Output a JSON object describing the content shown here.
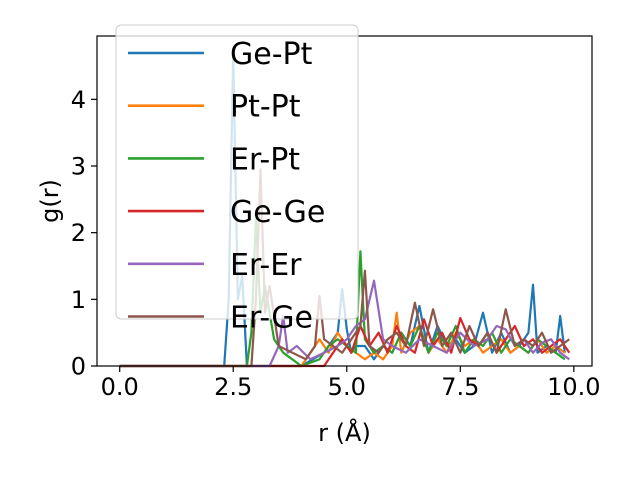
{
  "chart_data": {
    "type": "line",
    "title": "",
    "xlabel": "r (Å)",
    "ylabel": "g(r)",
    "xlim": [
      -0.5,
      10.4
    ],
    "ylim": [
      0,
      4.95
    ],
    "xticks": [
      0.0,
      2.5,
      5.0,
      7.5,
      10.0
    ],
    "xtick_labels": [
      "0.0",
      "2.5",
      "5.0",
      "7.5",
      "10.0"
    ],
    "yticks": [
      0,
      1,
      2,
      3,
      4
    ],
    "ytick_labels": [
      "0",
      "1",
      "2",
      "3",
      "4"
    ],
    "grid": false,
    "legend_position": "upper-left",
    "series": [
      {
        "name": "Ge-Pt",
        "color": "#1f77b4",
        "x": [
          0.0,
          2.3,
          2.4,
          2.5,
          2.6,
          2.7,
          2.8,
          3.0,
          3.5,
          4.0,
          4.5,
          4.8,
          4.9,
          5.0,
          5.1,
          5.2,
          5.4,
          5.6,
          5.8,
          6.0,
          6.2,
          6.4,
          6.6,
          6.8,
          7.0,
          7.2,
          7.4,
          7.6,
          7.8,
          8.0,
          8.2,
          8.4,
          8.6,
          8.8,
          9.0,
          9.1,
          9.2,
          9.4,
          9.6,
          9.7,
          9.8
        ],
        "y": [
          0,
          0,
          1.0,
          4.7,
          1.0,
          1.35,
          0,
          0,
          0,
          0,
          0.2,
          0.5,
          1.15,
          0.55,
          0.2,
          0.3,
          0.3,
          0.1,
          0.3,
          0.2,
          0.5,
          0.3,
          0.9,
          0.2,
          0.6,
          0.3,
          0.4,
          0.2,
          0.3,
          0.8,
          0.2,
          0.5,
          0.2,
          0.3,
          0.5,
          1.22,
          0.2,
          0.3,
          0.2,
          0.75,
          0.2
        ]
      },
      {
        "name": "Pt-Pt",
        "color": "#ff7f0e",
        "x": [
          0.0,
          4.0,
          4.2,
          4.4,
          4.6,
          4.8,
          5.0,
          5.2,
          5.4,
          5.6,
          5.8,
          6.0,
          6.1,
          6.2,
          6.4,
          6.6,
          6.8,
          7.0,
          7.2,
          7.4,
          7.6,
          7.8,
          8.0,
          8.2,
          8.4,
          8.6,
          8.8,
          9.0,
          9.2,
          9.4,
          9.6,
          9.8
        ],
        "y": [
          0,
          0,
          0.2,
          0.4,
          0.2,
          0.5,
          0.3,
          0.2,
          0.1,
          0.2,
          0.1,
          0.3,
          0.8,
          0.2,
          0.5,
          0.6,
          0.2,
          0.4,
          0.2,
          0.5,
          0.3,
          0.4,
          0.2,
          0.3,
          0.4,
          0.2,
          0.3,
          0.2,
          0.4,
          0.2,
          0.3,
          0.2
        ]
      },
      {
        "name": "Er-Pt",
        "color": "#2ca02c",
        "x": [
          0.0,
          2.8,
          2.9,
          3.0,
          3.1,
          3.2,
          3.4,
          3.6,
          4.0,
          4.4,
          4.6,
          4.8,
          5.0,
          5.2,
          5.3,
          5.4,
          5.6,
          5.8,
          6.0,
          6.2,
          6.4,
          6.6,
          6.8,
          7.0,
          7.2,
          7.4,
          7.6,
          7.8,
          8.0,
          8.2,
          8.4,
          8.6,
          8.8,
          9.0,
          9.2,
          9.4,
          9.6,
          9.8
        ],
        "y": [
          0,
          0,
          0.5,
          2.2,
          0.8,
          1.2,
          0.4,
          0.2,
          0,
          0.1,
          0.3,
          0.4,
          0.3,
          0.2,
          1.72,
          0.4,
          0.2,
          0.3,
          0.2,
          0.5,
          0.3,
          0.6,
          0.2,
          0.5,
          0.3,
          0.6,
          0.2,
          0.4,
          0.3,
          0.5,
          0.2,
          0.4,
          0.3,
          0.2,
          0.4,
          0.3,
          0.2,
          0.1
        ]
      },
      {
        "name": "Ge-Ge",
        "color": "#d62728",
        "x": [
          0.0,
          4.5,
          4.7,
          4.9,
          5.1,
          5.3,
          5.5,
          5.7,
          5.9,
          6.1,
          6.3,
          6.5,
          6.7,
          6.9,
          7.1,
          7.3,
          7.5,
          7.7,
          7.9,
          8.1,
          8.3,
          8.5,
          8.7,
          8.9,
          9.1,
          9.3,
          9.5,
          9.7,
          9.9
        ],
        "y": [
          0,
          0,
          0.2,
          0.4,
          0.2,
          0.6,
          0.3,
          0.5,
          0.2,
          0.6,
          0.3,
          0.2,
          0.7,
          0.3,
          0.5,
          0.2,
          0.72,
          0.4,
          0.3,
          0.5,
          0.2,
          0.4,
          0.6,
          0.3,
          0.4,
          0.2,
          0.3,
          0.4,
          0.2
        ]
      },
      {
        "name": "Er-Er",
        "color": "#9467bd",
        "x": [
          0.0,
          3.3,
          3.5,
          3.6,
          3.7,
          3.9,
          4.2,
          4.5,
          4.8,
          5.0,
          5.2,
          5.4,
          5.6,
          5.8,
          6.0,
          6.3,
          6.6,
          6.9,
          7.2,
          7.5,
          7.8,
          8.1,
          8.3,
          8.5,
          8.7,
          8.9,
          9.1,
          9.3,
          9.5,
          9.7,
          9.9
        ],
        "y": [
          0,
          0,
          0.3,
          0.75,
          0.2,
          0.3,
          0.1,
          0.2,
          0.3,
          0.4,
          0.6,
          0.7,
          1.28,
          0.4,
          0.3,
          0.2,
          0.4,
          0.3,
          0.2,
          0.5,
          0.3,
          0.4,
          0.6,
          0.55,
          0.3,
          0.4,
          0.2,
          0.35,
          0.4,
          0.2,
          0.1
        ]
      },
      {
        "name": "Er-Ge",
        "color": "#8c564b",
        "x": [
          0.0,
          2.9,
          3.0,
          3.1,
          3.2,
          3.3,
          3.5,
          3.8,
          4.1,
          4.3,
          4.4,
          4.5,
          4.7,
          4.9,
          5.1,
          5.3,
          5.4,
          5.5,
          5.7,
          5.9,
          6.1,
          6.3,
          6.5,
          6.7,
          6.9,
          7.1,
          7.3,
          7.5,
          7.7,
          7.9,
          8.1,
          8.3,
          8.5,
          8.7,
          8.9,
          9.1,
          9.3,
          9.5,
          9.7,
          9.9
        ],
        "y": [
          0,
          0,
          1.0,
          2.95,
          0.8,
          1.2,
          0.3,
          0.2,
          0.1,
          0.3,
          1.05,
          0.4,
          0.3,
          0.2,
          0.4,
          0.6,
          1.43,
          0.3,
          0.2,
          0.4,
          0.5,
          0.3,
          0.95,
          0.3,
          0.85,
          0.3,
          0.5,
          0.2,
          0.6,
          0.3,
          0.5,
          0.2,
          0.85,
          0.3,
          0.4,
          0.3,
          0.5,
          0.2,
          0.3,
          0.4
        ]
      }
    ]
  }
}
